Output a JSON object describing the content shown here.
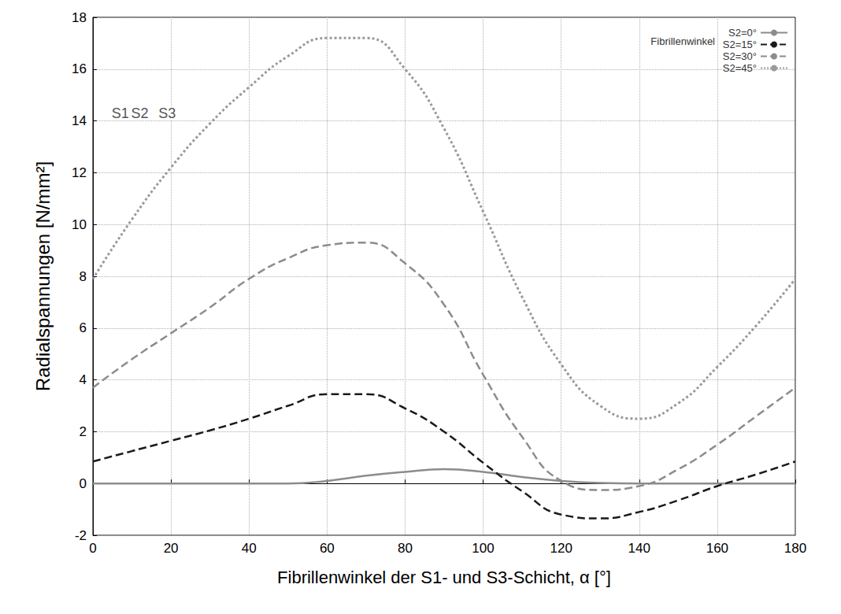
{
  "chart_data": {
    "type": "line",
    "x_label": "Fibrillenwinkel der S1- und S3-Schicht, α [°]",
    "y_label": "Radialspannungen [N/mm²]",
    "x": [
      0,
      10,
      20,
      30,
      40,
      50,
      60,
      70,
      80,
      90,
      100,
      110,
      120,
      130,
      140,
      150,
      160,
      170,
      180
    ],
    "series": [
      {
        "name": "S2=0°",
        "color": "#8c8c8c",
        "line_style": "solid",
        "values": [
          0,
          0,
          0,
          0,
          0,
          0,
          0.1,
          0.3,
          0.45,
          0.55,
          0.45,
          0.25,
          0.1,
          0.02,
          0,
          0,
          0,
          0,
          0
        ]
      },
      {
        "name": "S2=15°",
        "color": "#1a1a1a",
        "line_style": "dashed",
        "values": [
          0.85,
          1.25,
          1.65,
          2.05,
          2.5,
          3.0,
          3.45,
          3.45,
          2.9,
          2.0,
          0.8,
          -0.3,
          -1.2,
          -1.35,
          -1.1,
          -0.65,
          -0.1,
          0.35,
          0.85
        ]
      },
      {
        "name": "S2=30°",
        "color": "#8c8c8c",
        "line_style": "dashed",
        "values": [
          3.7,
          4.8,
          5.8,
          6.8,
          7.9,
          8.7,
          9.2,
          9.3,
          8.5,
          6.9,
          4.2,
          1.8,
          0.1,
          -0.25,
          -0.1,
          0.55,
          1.5,
          2.6,
          3.7
        ]
      },
      {
        "name": "S2=45°",
        "color": "#9a9a9a",
        "line_style": "dotted",
        "values": [
          7.9,
          10.2,
          12.2,
          13.9,
          15.3,
          16.5,
          17.2,
          17.2,
          16.0,
          13.7,
          10.5,
          7.2,
          4.6,
          3.0,
          2.5,
          3.1,
          4.5,
          6.1,
          7.9
        ]
      }
    ],
    "xlim": [
      0,
      180
    ],
    "xticks": [
      0,
      20,
      40,
      60,
      80,
      100,
      120,
      140,
      160,
      180
    ],
    "ylim": [
      -2,
      18
    ],
    "yticks": [
      -2,
      0,
      2,
      4,
      6,
      8,
      10,
      12,
      14,
      16,
      18
    ],
    "grid": true,
    "legend": "top-right",
    "legend_title": "Fibrillenwinkel",
    "annotations": [
      {
        "text": "S1",
        "x": 7,
        "y": 14.3
      },
      {
        "text": "S2",
        "x": 12,
        "y": 14.3
      },
      {
        "text": "S3",
        "x": 19,
        "y": 14.3
      }
    ]
  }
}
